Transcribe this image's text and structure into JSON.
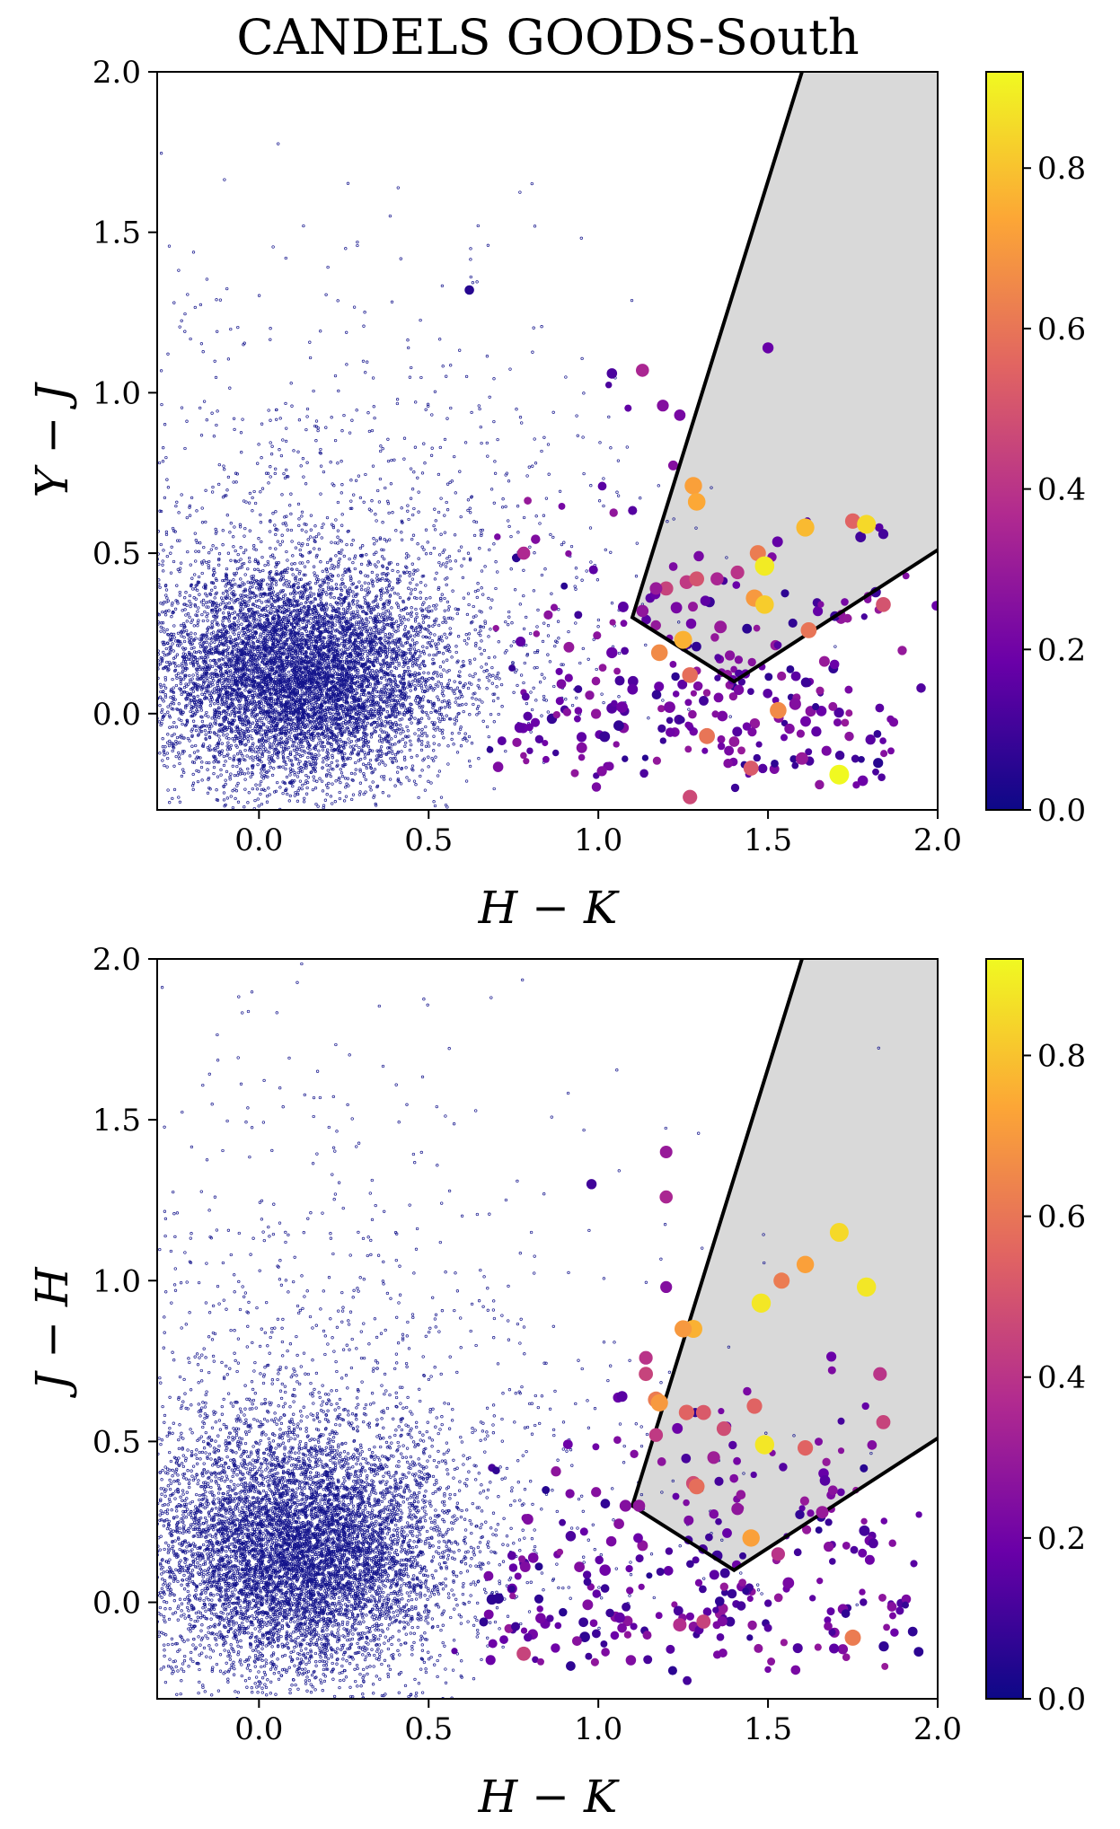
{
  "figure": {
    "title": "CANDELS GOODS-South"
  },
  "colors": {
    "background_points": "#14148c",
    "selection_region_fill": "#d9d9d9",
    "selection_region_edge": "#000000",
    "colormap": [
      "#0d0887",
      "#6a00a8",
      "#b12a90",
      "#e16462",
      "#fca636",
      "#f0f921"
    ]
  },
  "chart_data": [
    {
      "type": "scatter",
      "panel": "top",
      "xlabel": "H − K",
      "ylabel": "Y − J",
      "xlim": [
        -0.3,
        2.0
      ],
      "ylim": [
        -0.3,
        2.0
      ],
      "xticks": [
        "0.0",
        "0.5",
        "1.0",
        "1.5",
        "2.0"
      ],
      "yticks": [
        "0.0",
        "0.5",
        "1.0",
        "1.5",
        "2.0"
      ],
      "xtick_values": [
        0.0,
        0.5,
        1.0,
        1.5,
        2.0
      ],
      "ytick_values": [
        0.0,
        0.5,
        1.0,
        1.5,
        2.0
      ],
      "selection_region": [
        [
          1.1,
          0.3
        ],
        [
          1.4,
          0.1
        ],
        [
          2.0,
          0.51
        ],
        [
          2.0,
          2.0
        ],
        [
          1.6,
          2.0
        ],
        [
          1.1,
          0.3
        ]
      ],
      "colorbar": {
        "range": [
          0.0,
          0.92
        ],
        "ticks": [
          "0.0",
          "0.2",
          "0.4",
          "0.6",
          "0.8"
        ],
        "tick_values": [
          0.0,
          0.2,
          0.4,
          0.6,
          0.8
        ]
      },
      "background_cloud": {
        "count": 9000,
        "center": [
          0.12,
          0.12
        ],
        "spread": [
          0.22,
          0.17
        ],
        "note": "dense small points"
      },
      "candidates": [
        [
          1.13,
          1.07,
          0.35
        ],
        [
          1.19,
          0.96,
          0.25
        ],
        [
          1.28,
          0.71,
          0.72
        ],
        [
          1.29,
          0.66,
          0.74
        ],
        [
          1.61,
          0.58,
          0.78
        ],
        [
          1.75,
          0.6,
          0.55
        ],
        [
          1.79,
          0.59,
          0.85
        ],
        [
          1.47,
          0.5,
          0.62
        ],
        [
          1.49,
          0.46,
          0.89
        ],
        [
          1.46,
          0.36,
          0.7
        ],
        [
          1.49,
          0.34,
          0.82
        ],
        [
          1.41,
          0.44,
          0.4
        ],
        [
          1.35,
          0.42,
          0.35
        ],
        [
          1.26,
          0.41,
          0.42
        ],
        [
          1.2,
          0.39,
          0.45
        ],
        [
          1.29,
          0.42,
          0.5
        ],
        [
          1.17,
          0.39,
          0.3
        ],
        [
          1.62,
          0.26,
          0.6
        ],
        [
          1.84,
          0.34,
          0.5
        ],
        [
          1.25,
          0.23,
          0.76
        ],
        [
          1.18,
          0.19,
          0.66
        ],
        [
          1.27,
          0.12,
          0.58
        ],
        [
          1.53,
          0.01,
          0.66
        ],
        [
          1.32,
          -0.07,
          0.6
        ],
        [
          1.45,
          -0.17,
          0.52
        ],
        [
          1.71,
          -0.19,
          0.92
        ],
        [
          1.27,
          -0.26,
          0.47
        ],
        [
          1.13,
          0.32,
          0.28
        ],
        [
          1.23,
          0.33,
          0.22
        ],
        [
          1.36,
          0.27,
          0.3
        ],
        [
          1.58,
          0.03,
          0.25
        ],
        [
          1.07,
          0.02,
          0.2
        ],
        [
          1.04,
          0.19,
          0.18
        ],
        [
          0.78,
          0.5,
          0.36
        ],
        [
          1.21,
          0.02,
          0.22
        ],
        [
          1.6,
          -0.14,
          0.3
        ],
        [
          1.24,
          0.93,
          0.22
        ],
        [
          1.5,
          1.14,
          0.18
        ],
        [
          1.04,
          1.06,
          0.12
        ],
        [
          0.62,
          1.32,
          0.05
        ]
      ]
    },
    {
      "type": "scatter",
      "panel": "bottom",
      "xlabel": "H − K",
      "ylabel": "J − H",
      "xlim": [
        -0.3,
        2.0
      ],
      "ylim": [
        -0.3,
        2.0
      ],
      "xticks": [
        "0.0",
        "0.5",
        "1.0",
        "1.5",
        "2.0"
      ],
      "yticks": [
        "0.0",
        "0.5",
        "1.0",
        "1.5",
        "2.0"
      ],
      "xtick_values": [
        0.0,
        0.5,
        1.0,
        1.5,
        2.0
      ],
      "ytick_values": [
        0.0,
        0.5,
        1.0,
        1.5,
        2.0
      ],
      "selection_region": [
        [
          1.1,
          0.3
        ],
        [
          1.4,
          0.1
        ],
        [
          2.0,
          0.51
        ],
        [
          2.0,
          2.0
        ],
        [
          1.6,
          2.0
        ],
        [
          1.1,
          0.3
        ]
      ],
      "colorbar": {
        "range": [
          0.0,
          0.92
        ],
        "ticks": [
          "0.0",
          "0.2",
          "0.4",
          "0.6",
          "0.8"
        ],
        "tick_values": [
          0.0,
          0.2,
          0.4,
          0.6,
          0.8
        ]
      },
      "background_cloud": {
        "count": 9000,
        "center": [
          0.12,
          0.15
        ],
        "spread": [
          0.22,
          0.2
        ],
        "note": "dense small points"
      },
      "candidates": [
        [
          1.2,
          1.4,
          0.3
        ],
        [
          1.2,
          1.26,
          0.35
        ],
        [
          1.71,
          1.15,
          0.85
        ],
        [
          1.61,
          1.05,
          0.72
        ],
        [
          1.54,
          1.0,
          0.62
        ],
        [
          1.48,
          0.93,
          0.88
        ],
        [
          1.79,
          0.98,
          0.88
        ],
        [
          1.28,
          0.85,
          0.76
        ],
        [
          1.25,
          0.85,
          0.7
        ],
        [
          1.14,
          0.76,
          0.4
        ],
        [
          1.14,
          0.71,
          0.45
        ],
        [
          1.17,
          0.63,
          0.62
        ],
        [
          1.18,
          0.62,
          0.7
        ],
        [
          1.26,
          0.59,
          0.55
        ],
        [
          1.31,
          0.59,
          0.52
        ],
        [
          1.46,
          0.61,
          0.55
        ],
        [
          1.37,
          0.54,
          0.48
        ],
        [
          1.17,
          0.52,
          0.42
        ],
        [
          1.49,
          0.49,
          0.88
        ],
        [
          1.61,
          0.48,
          0.55
        ],
        [
          1.28,
          0.37,
          0.48
        ],
        [
          1.29,
          0.36,
          0.58
        ],
        [
          1.45,
          0.2,
          0.72
        ],
        [
          1.53,
          0.15,
          0.4
        ],
        [
          1.83,
          0.71,
          0.4
        ],
        [
          1.84,
          0.56,
          0.45
        ],
        [
          1.75,
          -0.11,
          0.62
        ],
        [
          1.31,
          -0.06,
          0.45
        ],
        [
          1.24,
          -0.07,
          0.38
        ],
        [
          0.78,
          -0.16,
          0.45
        ],
        [
          1.12,
          0.3,
          0.28
        ],
        [
          1.08,
          0.3,
          0.25
        ],
        [
          1.02,
          0.1,
          0.2
        ],
        [
          1.66,
          0.28,
          0.3
        ],
        [
          1.2,
          0.98,
          0.25
        ],
        [
          1.34,
          0.45,
          0.32
        ],
        [
          1.56,
          0.06,
          0.22
        ],
        [
          0.98,
          1.3,
          0.1
        ],
        [
          1.07,
          0.64,
          0.15
        ],
        [
          1.41,
          0.29,
          0.28
        ]
      ]
    }
  ]
}
